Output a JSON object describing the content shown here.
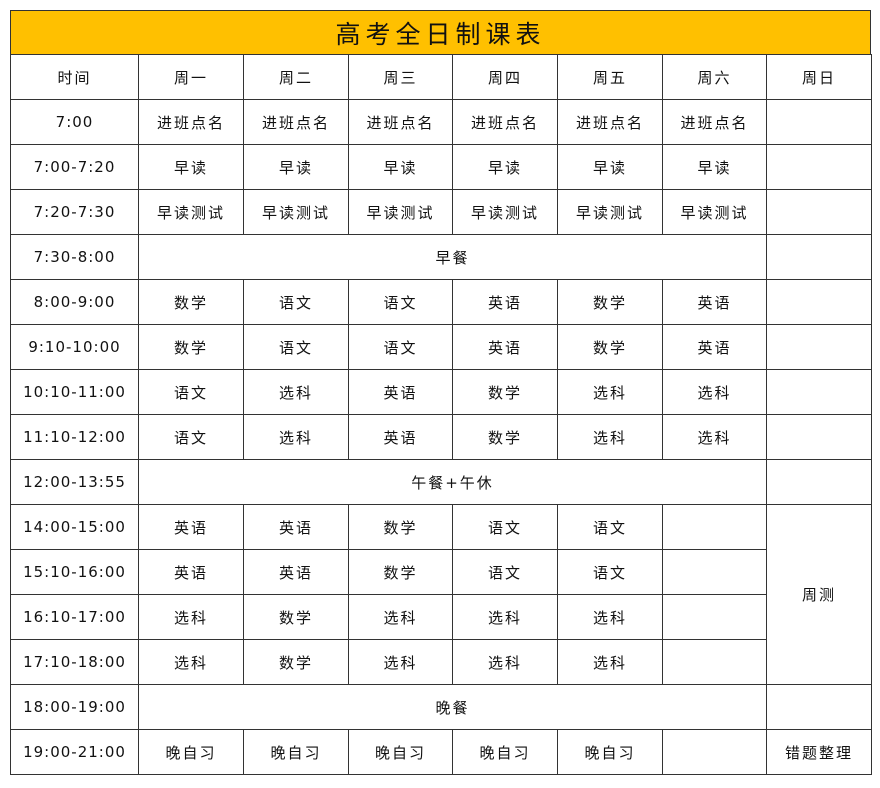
{
  "title": "高考全日制课表",
  "header": [
    "时间",
    "周一",
    "周二",
    "周三",
    "周四",
    "周五",
    "周六",
    "周日"
  ],
  "rows": [
    {
      "time": "7:00",
      "cells": [
        "进班点名",
        "进班点名",
        "进班点名",
        "进班点名",
        "进班点名",
        "进班点名"
      ],
      "sun": ""
    },
    {
      "time": "7:00-7:20",
      "cells": [
        "早读",
        "早读",
        "早读",
        "早读",
        "早读",
        "早读"
      ],
      "sun": ""
    },
    {
      "time": "7:20-7:30",
      "cells": [
        "早读测试",
        "早读测试",
        "早读测试",
        "早读测试",
        "早读测试",
        "早读测试"
      ],
      "sun": ""
    },
    {
      "time": "7:30-8:00",
      "span": "早餐",
      "sun": ""
    },
    {
      "time": "8:00-9:00",
      "cells": [
        "数学",
        "语文",
        "语文",
        "英语",
        "数学",
        "英语"
      ],
      "sun": ""
    },
    {
      "time": "9:10-10:00",
      "cells": [
        "数学",
        "语文",
        "语文",
        "英语",
        "数学",
        "英语"
      ],
      "sun": ""
    },
    {
      "time": "10:10-11:00",
      "cells": [
        "语文",
        "选科",
        "英语",
        "数学",
        "选科",
        "选科"
      ],
      "sun": ""
    },
    {
      "time": "11:10-12:00",
      "cells": [
        "语文",
        "选科",
        "英语",
        "数学",
        "选科",
        "选科"
      ],
      "sun": ""
    },
    {
      "time": "12:00-13:55",
      "span": "午餐+午休",
      "sun": ""
    },
    {
      "time": "14:00-15:00",
      "cells": [
        "英语",
        "英语",
        "数学",
        "语文",
        "语文",
        ""
      ],
      "sun": "周测"
    },
    {
      "time": "15:10-16:00",
      "cells": [
        "英语",
        "英语",
        "数学",
        "语文",
        "语文",
        ""
      ],
      "sun": null
    },
    {
      "time": "16:10-17:00",
      "cells": [
        "选科",
        "数学",
        "选科",
        "选科",
        "选科",
        ""
      ],
      "sun": null
    },
    {
      "time": "17:10-18:00",
      "cells": [
        "选科",
        "数学",
        "选科",
        "选科",
        "选科",
        ""
      ],
      "sun": null
    },
    {
      "time": "18:00-19:00",
      "span": "晚餐",
      "sun": ""
    },
    {
      "time": "19:00-21:00",
      "cells": [
        "晚自习",
        "晚自习",
        "晚自习",
        "晚自习",
        "晚自习",
        ""
      ],
      "sun": "错题整理"
    }
  ]
}
